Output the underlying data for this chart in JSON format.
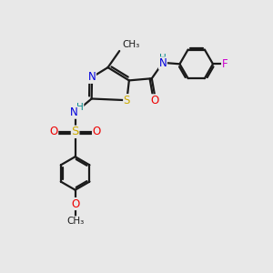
{
  "bg_color": "#e8e8e8",
  "bond_color": "#1a1a1a",
  "bond_lw": 1.6,
  "dbo": 0.055,
  "fs": 8.5,
  "fss": 7.5,
  "colors": {
    "N": "#0000dd",
    "S": "#ccaa00",
    "O": "#ee0000",
    "F": "#cc00cc",
    "NH": "#008888",
    "C": "#1a1a1a"
  },
  "figsize": [
    3.0,
    3.0
  ],
  "dpi": 100,
  "xlim": [
    0,
    10
  ],
  "ylim": [
    0,
    10
  ]
}
